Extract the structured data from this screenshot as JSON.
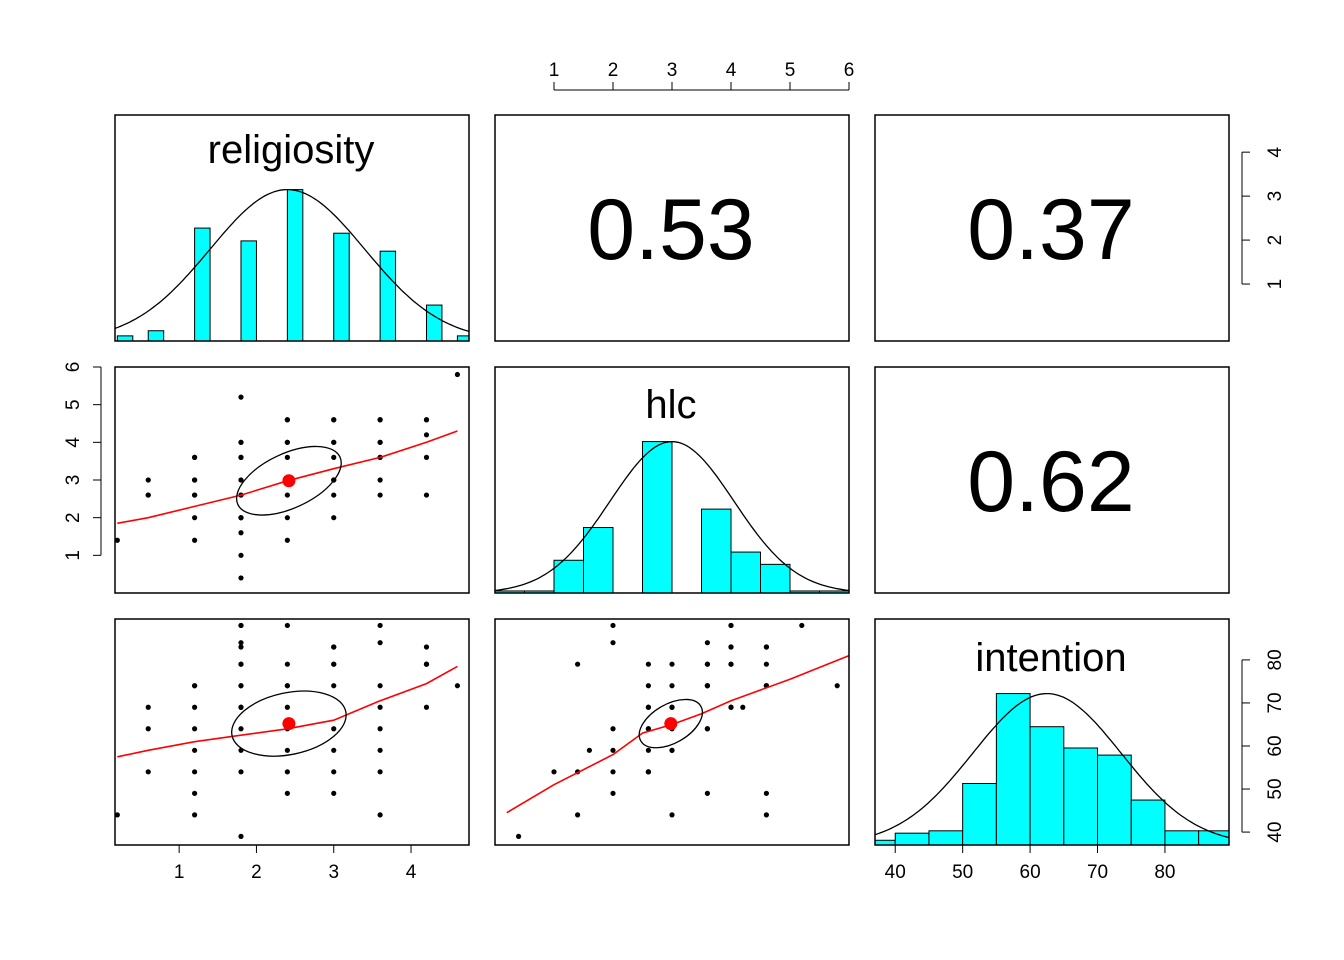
{
  "chart_data": {
    "type": "scatter",
    "title": "",
    "variables": [
      "religiosity",
      "hlc",
      "intention"
    ],
    "axis_ticks": {
      "religiosity": [
        1,
        2,
        3,
        4
      ],
      "hlc": [
        1,
        2,
        3,
        4,
        5,
        6
      ],
      "intention": [
        40,
        50,
        60,
        70,
        80
      ]
    },
    "hist_density_axis_ticks": [
      1,
      2,
      3,
      4
    ],
    "ranges": {
      "religiosity": [
        0.17,
        4.75
      ],
      "hlc": [
        0.0,
        6.0
      ],
      "intention": [
        37.0,
        89.5
      ]
    },
    "correlations": [
      {
        "row": "religiosity",
        "col": "hlc",
        "value": "0.53"
      },
      {
        "row": "religiosity",
        "col": "intention",
        "value": "0.37"
      },
      {
        "row": "hlc",
        "col": "intention",
        "value": "0.62"
      }
    ],
    "histograms": {
      "religiosity": {
        "breaks": [
          0.2,
          0.4,
          0.6,
          0.8,
          1.0,
          1.2,
          1.4,
          1.6,
          1.8,
          2.0,
          2.2,
          2.4,
          2.6,
          2.8,
          3.0,
          3.2,
          3.4,
          3.6,
          3.8,
          4.0,
          4.2,
          4.4,
          4.6,
          4.8
        ],
        "counts": [
          0.1,
          0,
          0.2,
          0,
          0,
          2.2,
          0,
          0,
          1.95,
          0,
          0,
          2.95,
          0,
          0,
          2.1,
          0,
          0,
          1.75,
          0,
          0,
          0.7,
          0,
          0.1
        ],
        "density_peak": 2.95,
        "density_curve": {
          "mean": 2.4,
          "sd": 1.0
        }
      },
      "hlc": {
        "breaks": [
          0,
          0.5,
          1,
          1.5,
          2,
          2.5,
          3,
          3.5,
          4,
          4.5,
          5,
          5.5,
          6
        ],
        "counts": [
          0.05,
          0.05,
          0.8,
          1.6,
          0,
          3.7,
          0,
          2.05,
          1.0,
          0.7,
          0.05,
          0.05
        ],
        "density_peak": 3.7,
        "density_curve": {
          "mean": 3.0,
          "sd": 1.05
        }
      },
      "intention": {
        "breaks": [
          37,
          40,
          45,
          50,
          55,
          60,
          65,
          70,
          75,
          80,
          85,
          90
        ],
        "counts": [
          0.1,
          0.25,
          0.3,
          1.3,
          3.2,
          2.5,
          2.05,
          1.9,
          0.95,
          0.3,
          0.3
        ],
        "density_peak": 3.2,
        "density_curve": {
          "mean": 62.5,
          "sd": 11.0
        }
      }
    },
    "scatter_points": {
      "religiosity": [
        0.2,
        0.6,
        0.6,
        0.6,
        1.2,
        1.2,
        1.2,
        1.2,
        1.2,
        1.2,
        1.2,
        1.2,
        1.8,
        1.8,
        1.8,
        1.8,
        1.8,
        1.8,
        1.8,
        1.8,
        1.8,
        1.8,
        1.8,
        1.8,
        1.8,
        1.8,
        2.4,
        2.4,
        2.4,
        2.4,
        2.4,
        2.4,
        2.4,
        2.4,
        2.4,
        3.0,
        3.0,
        3.0,
        3.0,
        3.0,
        3.0,
        3.0,
        3.0,
        3.0,
        3.6,
        3.6,
        3.6,
        3.6,
        3.6,
        3.6,
        3.6,
        3.6,
        4.2,
        4.2,
        4.2,
        4.2,
        4.2,
        4.6
      ],
      "hlc": [
        1.4,
        3.0,
        2.6,
        2.6,
        3.6,
        3.0,
        2.6,
        2.0,
        1.4,
        3.6,
        3.0,
        2.6,
        5.2,
        4.0,
        3.6,
        3.0,
        2.6,
        2.0,
        1.6,
        1.0,
        0.4,
        4.0,
        3.6,
        2.6,
        2.0,
        2.0,
        4.6,
        4.0,
        3.6,
        3.0,
        2.6,
        2.0,
        1.4,
        4.6,
        4.0,
        4.6,
        4.0,
        3.6,
        3.0,
        2.6,
        2.0,
        4.6,
        4.0,
        3.0,
        4.6,
        4.0,
        3.6,
        3.0,
        2.6,
        4.6,
        4.0,
        3.6,
        4.6,
        4.2,
        3.6,
        2.6,
        4.6,
        5.8
      ],
      "intention": [
        44,
        69,
        64,
        54,
        74,
        69,
        64,
        59,
        54,
        49,
        44,
        74,
        88,
        83,
        79,
        74,
        69,
        64,
        59,
        54,
        39,
        79,
        74,
        69,
        88,
        84,
        74,
        69,
        64,
        59,
        54,
        49,
        79,
        74,
        88,
        83,
        79,
        74,
        64,
        59,
        54,
        49,
        83,
        79,
        74,
        69,
        64,
        59,
        54,
        44,
        88,
        84,
        79,
        69,
        79,
        79,
        83,
        74
      ]
    },
    "means": {
      "religiosity": 2.42,
      "hlc": 2.98,
      "intention": 65.2
    },
    "smoothers": {
      "religiosity_hlc": {
        "x": [
          0.2,
          0.6,
          1.2,
          1.8,
          2.4,
          3.0,
          3.6,
          4.2,
          4.6
        ],
        "y": [
          1.85,
          2.0,
          2.3,
          2.6,
          2.98,
          3.3,
          3.6,
          4.0,
          4.3
        ]
      },
      "religiosity_intention": {
        "x": [
          0.2,
          0.6,
          1.2,
          1.8,
          2.4,
          3.0,
          3.6,
          4.2,
          4.6
        ],
        "y": [
          57.5,
          59.0,
          61.0,
          62.5,
          64.0,
          66.0,
          70.5,
          74.5,
          78.5
        ]
      },
      "hlc_intention": {
        "x": [
          0.2,
          1.0,
          2.0,
          2.5,
          3.0,
          3.5,
          4.0,
          4.5,
          5.0,
          6.0
        ],
        "y": [
          44.5,
          51.0,
          58.0,
          63.0,
          65.0,
          67.5,
          70.5,
          73.0,
          75.5,
          81.0
        ]
      }
    },
    "ellipses": {
      "religiosity_hlc": {
        "angle_deg": -25,
        "a": 1.55,
        "b": 0.75
      },
      "religiosity_intention": {
        "angle_deg": -12,
        "a": 1.6,
        "b": 0.85
      },
      "hlc_intention": {
        "angle_deg": -30,
        "a": 1.25,
        "b": 0.7
      }
    },
    "colors": {
      "hist_fill": "#00ffff",
      "smoother": "#ff0000",
      "mean_point": "#ff0000",
      "points": "#000000"
    }
  }
}
